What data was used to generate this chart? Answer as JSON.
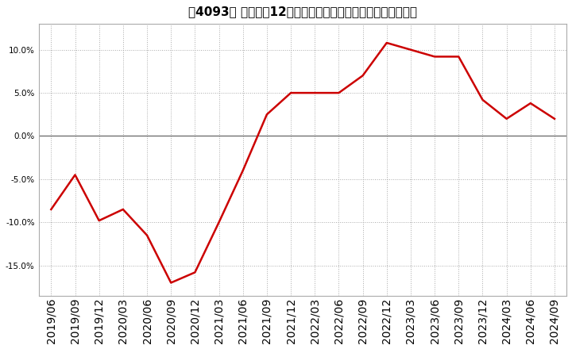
{
  "title_raw": "［4093］ 売上高の12か月移動合計の対前年同期増減率の推移",
  "line_color": "#cc0000",
  "background_color": "#ffffff",
  "grid_color": "#aaaaaa",
  "spine_color": "#aaaaaa",
  "x_labels": [
    "2019/06",
    "2019/09",
    "2019/12",
    "2020/03",
    "2020/06",
    "2020/09",
    "2020/12",
    "2021/03",
    "2021/06",
    "2021/09",
    "2021/12",
    "2022/03",
    "2022/06",
    "2022/09",
    "2022/12",
    "2023/03",
    "2023/06",
    "2023/09",
    "2023/12",
    "2024/03",
    "2024/06",
    "2024/09"
  ],
  "values": [
    -8.5,
    -4.5,
    -9.8,
    -8.5,
    -11.5,
    -17.0,
    -15.8,
    -10.0,
    -4.0,
    2.5,
    5.0,
    5.0,
    5.0,
    7.0,
    10.8,
    10.0,
    9.2,
    9.2,
    4.2,
    2.0,
    3.8,
    2.0
  ],
  "ylim": [
    -18.5,
    13.0
  ],
  "yticks": [
    -15.0,
    -10.0,
    -5.0,
    0.0,
    5.0,
    10.0
  ],
  "title_fontsize": 11,
  "tick_fontsize": 7.5
}
